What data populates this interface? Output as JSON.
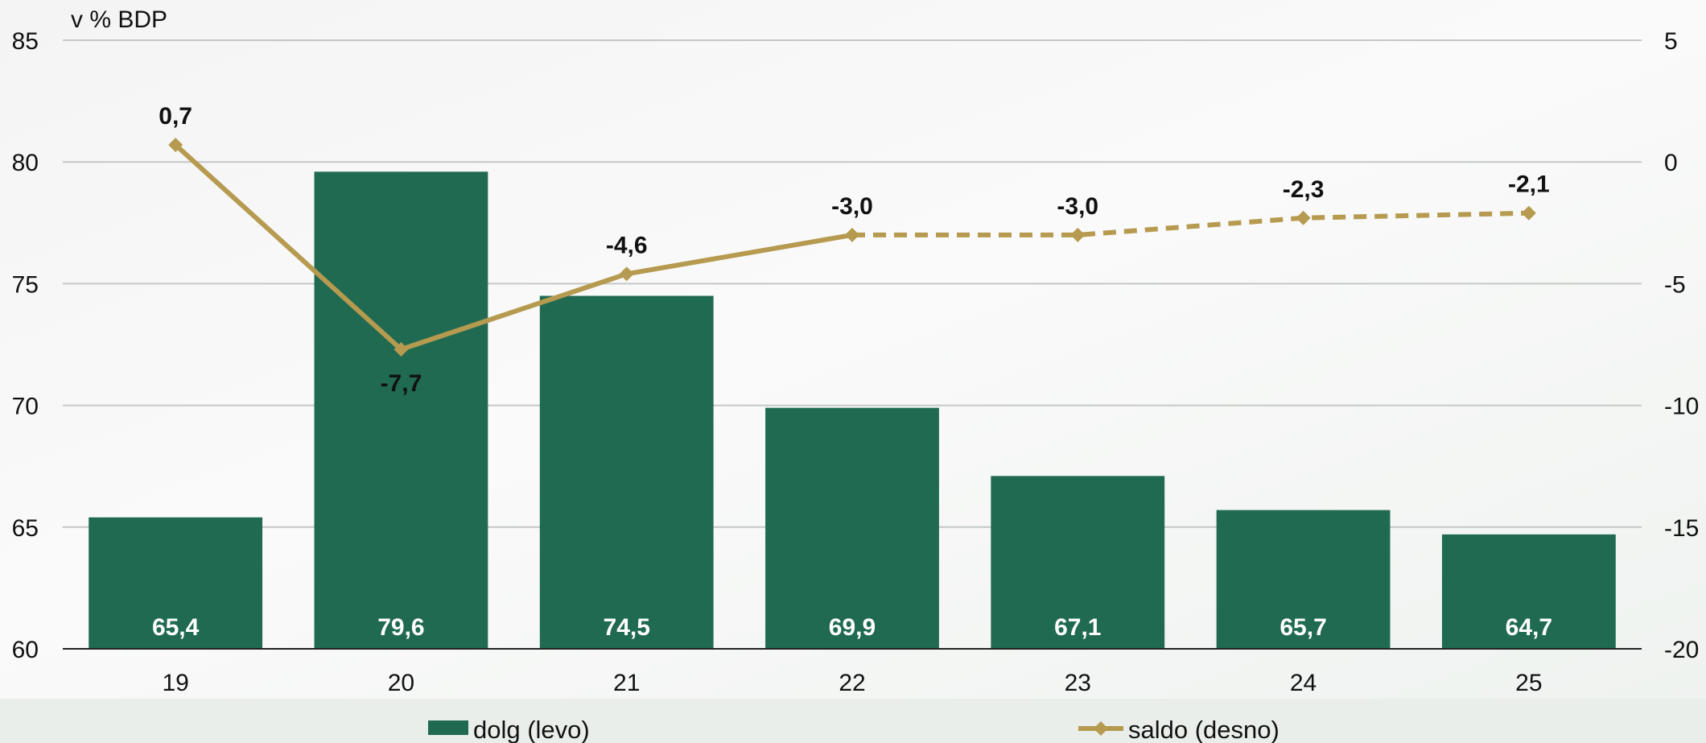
{
  "chart_data": {
    "type": "bar",
    "unit_label": "v % BDP",
    "categories": [
      "19",
      "20",
      "21",
      "22",
      "23",
      "24",
      "25"
    ],
    "y_left": {
      "ylim": [
        60,
        85
      ],
      "ticks": [
        "60",
        "65",
        "70",
        "75",
        "80",
        "85"
      ]
    },
    "y_right": {
      "ylim": [
        -20,
        5
      ],
      "ticks": [
        "-20",
        "-15",
        "-10",
        "-5",
        "0",
        "5"
      ]
    },
    "series": [
      {
        "name": "dolg (levo)",
        "type": "bar",
        "axis": "left",
        "color": "#206a52",
        "values": [
          65.4,
          79.6,
          74.5,
          69.9,
          67.1,
          65.7,
          64.7
        ],
        "labels": [
          "65,4",
          "79,6",
          "74,5",
          "69,9",
          "67,1",
          "65,7",
          "64,7"
        ]
      },
      {
        "name": "saldo (desno)",
        "type": "line",
        "axis": "right",
        "color": "#b59a4f",
        "marker": "diamond",
        "dashed_from_index": 3,
        "values": [
          0.7,
          -7.7,
          -4.6,
          -3.0,
          -3.0,
          -2.3,
          -2.1
        ],
        "labels": [
          "0,7",
          "-7,7",
          "-4,6",
          "-3,0",
          "-3,0",
          "-2,3",
          "-2,1"
        ]
      }
    ],
    "grid": true,
    "legend": "bottom"
  }
}
